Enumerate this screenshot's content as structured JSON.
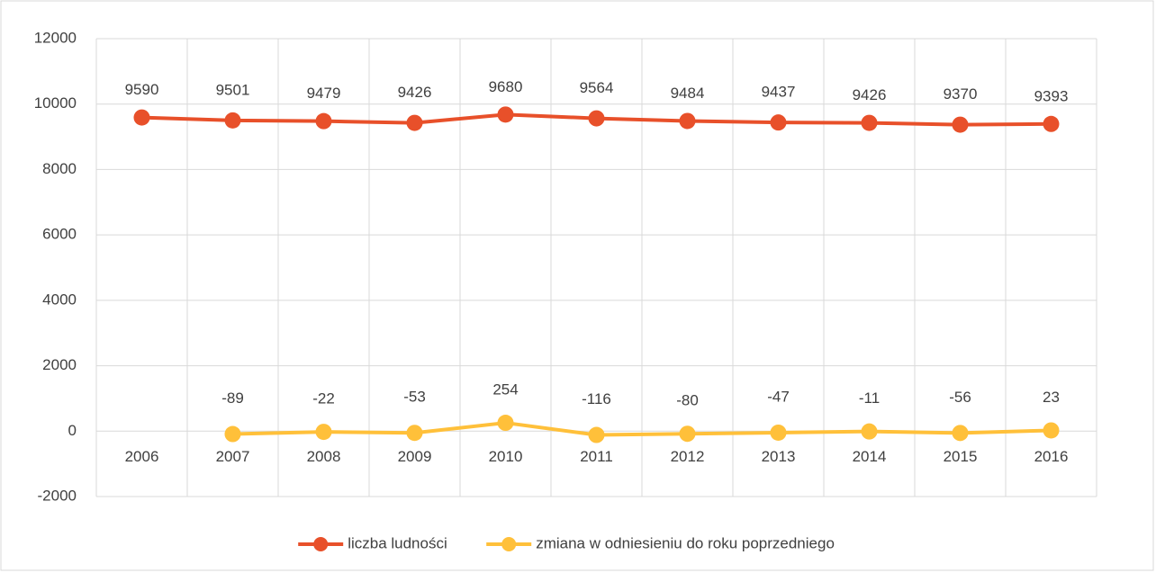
{
  "chart_data": {
    "type": "line",
    "categories": [
      "2006",
      "2007",
      "2008",
      "2009",
      "2010",
      "2011",
      "2012",
      "2013",
      "2014",
      "2015",
      "2016"
    ],
    "series": [
      {
        "name": "liczba ludności",
        "color": "#e8502a",
        "values": [
          9590,
          9501,
          9479,
          9426,
          9680,
          9564,
          9484,
          9437,
          9426,
          9370,
          9393
        ]
      },
      {
        "name": "zmiana w odniesieniu do roku poprzedniego",
        "color": "#ffc03a",
        "values": [
          null,
          -89,
          -22,
          -53,
          254,
          -116,
          -80,
          -47,
          -11,
          -56,
          23
        ]
      }
    ],
    "ylim": [
      -2000,
      12000
    ],
    "yticks": [
      -2000,
      0,
      2000,
      4000,
      6000,
      8000,
      10000,
      12000
    ],
    "grid": true,
    "legend": "bottom",
    "data_labels": true
  }
}
